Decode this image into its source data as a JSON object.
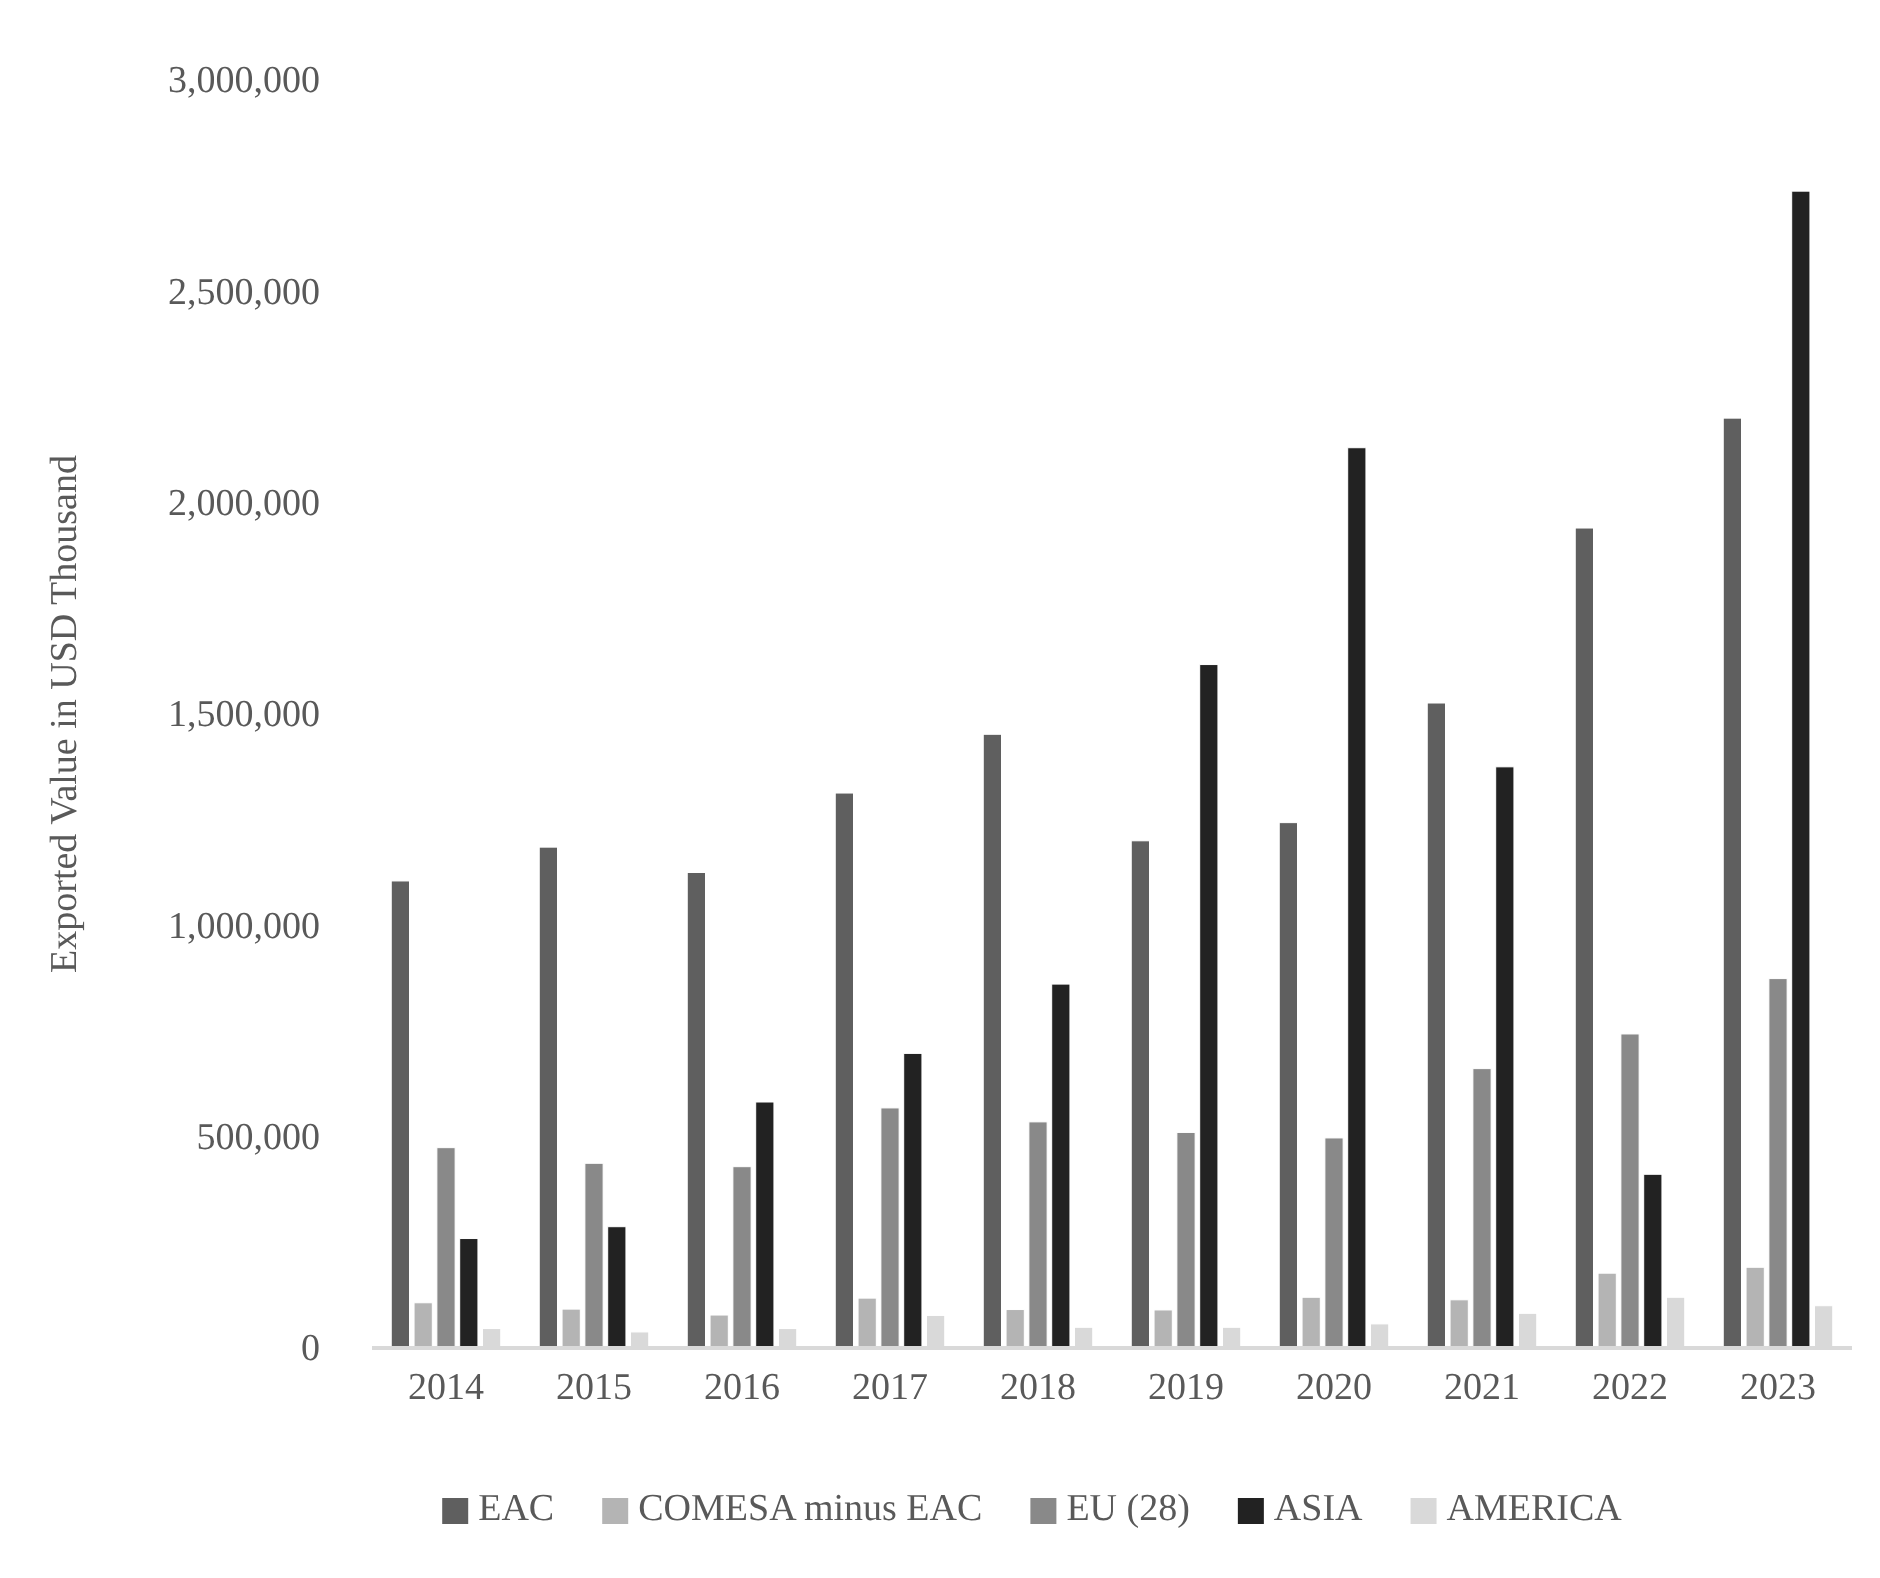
{
  "chart_data": {
    "type": "bar",
    "ylabel": "Exported Value in USD Thousand",
    "categories": [
      "2014",
      "2015",
      "2016",
      "2017",
      "2018",
      "2019",
      "2020",
      "2021",
      "2022",
      "2023"
    ],
    "series": [
      {
        "name": "EAC",
        "color": "#5f5f5f",
        "values": [
          1105000,
          1185000,
          1125000,
          1313000,
          1452000,
          1200000,
          1243000,
          1526000,
          1940000,
          2200000
        ]
      },
      {
        "name": "COMESA minus EAC",
        "color": "#b4b4b4",
        "values": [
          107000,
          92000,
          78000,
          118000,
          91000,
          90000,
          120000,
          114000,
          177000,
          191000
        ]
      },
      {
        "name": "EU (28)",
        "color": "#898989",
        "values": [
          474000,
          437000,
          429000,
          568000,
          535000,
          510000,
          497000,
          661000,
          743000,
          874000
        ]
      },
      {
        "name": "ASIA",
        "color": "#222222",
        "values": [
          259000,
          287000,
          582000,
          697000,
          861000,
          1617000,
          2130000,
          1375000,
          411000,
          2737000
        ]
      },
      {
        "name": "AMERICA",
        "color": "#d9d9d9",
        "values": [
          46000,
          38000,
          46000,
          77000,
          49000,
          49000,
          57000,
          82000,
          120000,
          100000
        ]
      }
    ],
    "ylim": [
      0,
      3000000
    ],
    "yticks": [
      {
        "value": 0,
        "label": "0"
      },
      {
        "value": 500000,
        "label": "500,000"
      },
      {
        "value": 1000000,
        "label": "1,000,000"
      },
      {
        "value": 1500000,
        "label": "1,500,000"
      },
      {
        "value": 2000000,
        "label": "2,000,000"
      },
      {
        "value": 2500000,
        "label": "2,500,000"
      },
      {
        "value": 3000000,
        "label": "3,000,000"
      }
    ],
    "grid": false,
    "legend": "bottom"
  }
}
